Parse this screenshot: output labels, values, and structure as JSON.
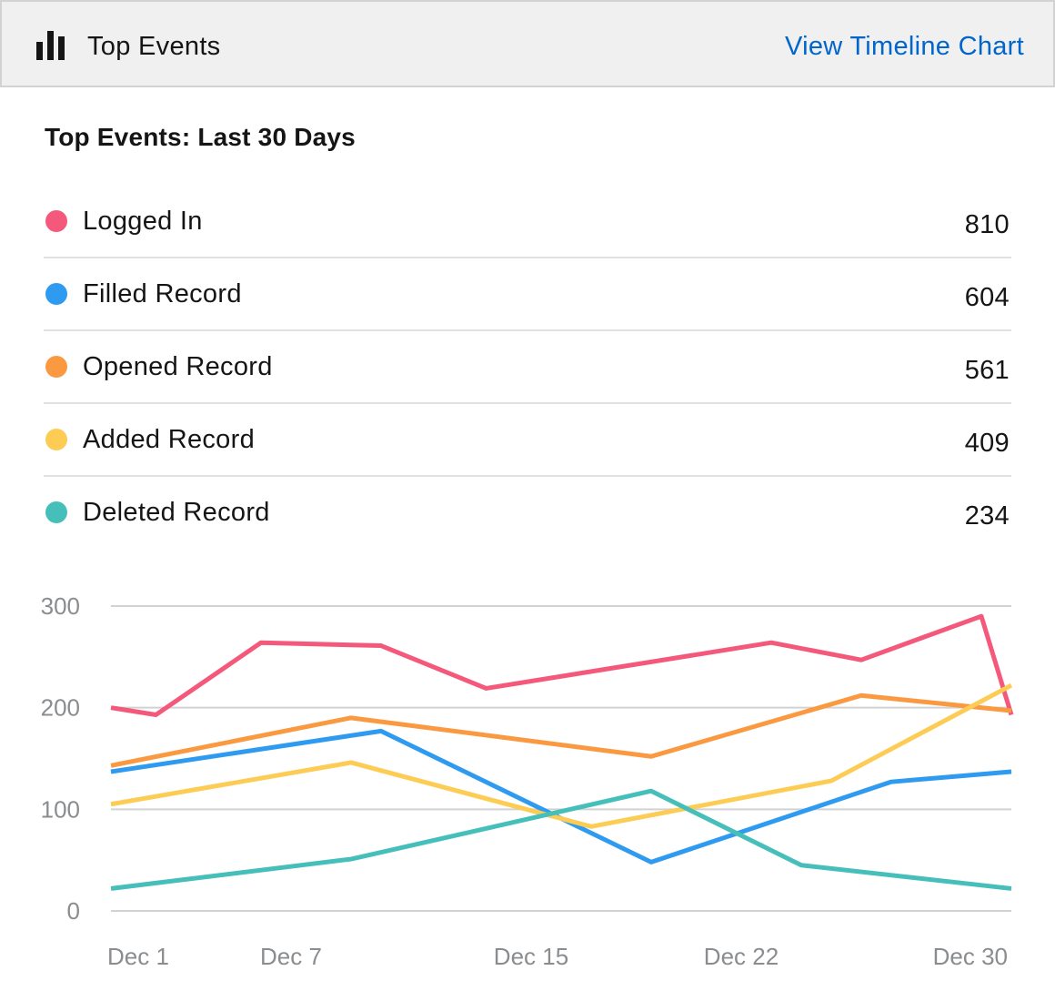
{
  "header": {
    "title": "Top Events",
    "link_label": "View Timeline Chart"
  },
  "subtitle": "Top Events: Last 30 Days",
  "legend": [
    {
      "label": "Logged In",
      "value": "810",
      "color": "#f4587a"
    },
    {
      "label": "Filled Record",
      "value": "604",
      "color": "#2e9bf0"
    },
    {
      "label": "Opened Record",
      "value": "561",
      "color": "#fa9940"
    },
    {
      "label": "Added Record",
      "value": "409",
      "color": "#fdcc55"
    },
    {
      "label": "Deleted Record",
      "value": "234",
      "color": "#46bfbb"
    }
  ],
  "colors": {
    "link": "#0066cc",
    "header_bg": "#f0f0f0",
    "grid": "#d2d2d2",
    "tick": "#8a8d90"
  },
  "chart_data": {
    "type": "line",
    "xlabel": "",
    "ylabel": "",
    "x_domain": [
      1,
      31
    ],
    "x_ticks": [
      {
        "day": 1,
        "label": "Dec 1"
      },
      {
        "day": 7,
        "label": "Dec 7"
      },
      {
        "day": 15,
        "label": "Dec 15"
      },
      {
        "day": 22,
        "label": "Dec 22"
      },
      {
        "day": 30,
        "label": "Dec 30"
      }
    ],
    "ylim": [
      0,
      300
    ],
    "y_ticks": [
      0,
      100,
      200,
      300
    ],
    "grid": true,
    "series": [
      {
        "name": "Logged In",
        "color": "#f4587a",
        "points": [
          [
            1,
            200
          ],
          [
            2.5,
            193
          ],
          [
            6,
            264
          ],
          [
            10,
            261
          ],
          [
            13.5,
            219
          ],
          [
            23,
            264
          ],
          [
            26,
            247
          ],
          [
            30,
            290
          ],
          [
            31,
            193
          ]
        ]
      },
      {
        "name": "Filled Record",
        "color": "#2e9bf0",
        "points": [
          [
            1,
            137
          ],
          [
            10,
            177
          ],
          [
            19,
            48
          ],
          [
            27,
            127
          ],
          [
            31,
            137
          ]
        ]
      },
      {
        "name": "Opened Record",
        "color": "#fa9940",
        "points": [
          [
            1,
            143
          ],
          [
            9,
            190
          ],
          [
            19,
            152
          ],
          [
            26,
            212
          ],
          [
            31,
            197
          ]
        ]
      },
      {
        "name": "Added Record",
        "color": "#fdcc55",
        "points": [
          [
            1,
            105
          ],
          [
            9,
            146
          ],
          [
            17,
            83
          ],
          [
            25,
            128
          ],
          [
            31,
            222
          ]
        ]
      },
      {
        "name": "Deleted Record",
        "color": "#46bfbb",
        "points": [
          [
            1,
            22
          ],
          [
            9,
            51
          ],
          [
            19,
            118
          ],
          [
            24,
            45
          ],
          [
            31,
            22
          ]
        ]
      }
    ]
  }
}
